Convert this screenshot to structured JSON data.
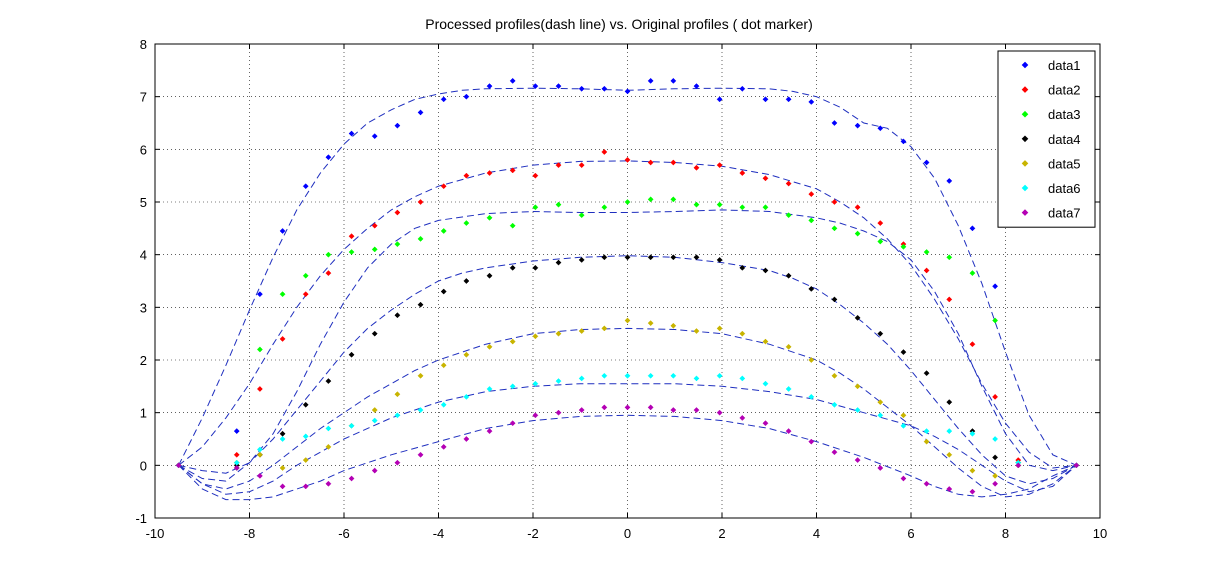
{
  "chart_data": {
    "type": "scatter",
    "title": "Processed profiles(dash line) vs. Original profiles ( dot marker)",
    "xlabel": "",
    "ylabel": "",
    "xlim": [
      -10,
      10
    ],
    "ylim": [
      -1,
      8
    ],
    "x_ticks": [
      "-10",
      "-8",
      "-6",
      "-4",
      "-2",
      "0",
      "2",
      "4",
      "6",
      "8",
      "10"
    ],
    "y_ticks": [
      "-1",
      "0",
      "1",
      "2",
      "3",
      "4",
      "5",
      "6",
      "7",
      "8"
    ],
    "grid": true,
    "legend_position": "top-right",
    "fit_line_style": "dashed",
    "fit_line_color": "#1f2fbf",
    "x": [
      -9.5,
      -8.27,
      -7.78,
      -7.3,
      -6.81,
      -6.33,
      -5.84,
      -5.35,
      -4.87,
      -4.38,
      -3.89,
      -3.41,
      -2.92,
      -2.43,
      -1.95,
      -1.46,
      -0.97,
      -0.49,
      0,
      0.49,
      0.97,
      1.46,
      1.95,
      2.43,
      2.92,
      3.41,
      3.89,
      4.38,
      4.87,
      5.35,
      5.84,
      6.33,
      6.81,
      7.3,
      7.78,
      8.27,
      9.5
    ],
    "series": [
      {
        "name": "data1",
        "color": "#0000ff",
        "values": [
          0,
          0.65,
          3.25,
          4.45,
          5.3,
          5.85,
          6.3,
          6.25,
          6.45,
          6.7,
          6.95,
          7.0,
          7.2,
          7.3,
          7.2,
          7.2,
          7.15,
          7.15,
          7.1,
          7.3,
          7.3,
          7.2,
          6.95,
          7.15,
          6.95,
          6.95,
          6.9,
          6.5,
          6.45,
          6.4,
          6.15,
          5.75,
          5.4,
          4.5,
          3.4,
          0.05,
          0
        ]
      },
      {
        "name": "data2",
        "color": "#ff0000",
        "values": [
          0,
          0.2,
          1.45,
          2.4,
          3.25,
          3.65,
          4.35,
          4.55,
          4.8,
          5.0,
          5.3,
          5.5,
          5.55,
          5.6,
          5.5,
          5.7,
          5.7,
          5.95,
          5.8,
          5.75,
          5.75,
          5.65,
          5.7,
          5.55,
          5.45,
          5.35,
          5.15,
          5.0,
          4.9,
          4.6,
          4.2,
          3.7,
          3.15,
          2.3,
          1.3,
          0.1,
          0
        ]
      },
      {
        "name": "data3",
        "color": "#00ff00",
        "values": [
          0,
          -0.05,
          2.2,
          3.25,
          3.6,
          4.0,
          4.05,
          4.1,
          4.2,
          4.3,
          4.45,
          4.6,
          4.7,
          4.55,
          4.9,
          4.95,
          4.75,
          4.9,
          5.0,
          5.05,
          5.05,
          4.95,
          4.95,
          4.9,
          4.9,
          4.75,
          4.65,
          4.5,
          4.4,
          4.25,
          4.15,
          4.05,
          3.95,
          3.65,
          2.75,
          0.05,
          0
        ]
      },
      {
        "name": "data4",
        "color": "#000000",
        "values": [
          0,
          0.0,
          0.2,
          0.6,
          1.15,
          1.6,
          2.1,
          2.5,
          2.85,
          3.05,
          3.3,
          3.5,
          3.6,
          3.75,
          3.75,
          3.85,
          3.9,
          3.95,
          3.95,
          3.95,
          3.95,
          3.95,
          3.9,
          3.75,
          3.7,
          3.6,
          3.35,
          3.15,
          2.8,
          2.5,
          2.15,
          1.75,
          1.2,
          0.65,
          0.15,
          0.0,
          0
        ]
      },
      {
        "name": "data5",
        "color": "#c8b400",
        "values": [
          0,
          0.05,
          0.2,
          -0.05,
          0.1,
          0.35,
          0.75,
          1.05,
          1.35,
          1.7,
          1.9,
          2.1,
          2.25,
          2.35,
          2.45,
          2.5,
          2.55,
          2.6,
          2.75,
          2.7,
          2.65,
          2.55,
          2.6,
          2.5,
          2.35,
          2.25,
          2.0,
          1.7,
          1.5,
          1.2,
          0.95,
          0.45,
          0.2,
          -0.1,
          -0.2,
          0.0,
          0
        ]
      },
      {
        "name": "data6",
        "color": "#00ffff",
        "values": [
          0,
          0.05,
          0.3,
          0.5,
          0.55,
          0.7,
          0.75,
          0.85,
          0.95,
          1.05,
          1.15,
          1.3,
          1.45,
          1.5,
          1.55,
          1.6,
          1.65,
          1.7,
          1.7,
          1.7,
          1.7,
          1.65,
          1.7,
          1.65,
          1.55,
          1.45,
          1.3,
          1.15,
          1.05,
          0.95,
          0.75,
          0.65,
          0.65,
          0.6,
          0.5,
          0.05,
          0
        ]
      },
      {
        "name": "data7",
        "color": "#b400b4",
        "values": [
          0,
          -0.05,
          -0.2,
          -0.4,
          -0.4,
          -0.35,
          -0.25,
          -0.1,
          0.05,
          0.2,
          0.35,
          0.5,
          0.65,
          0.8,
          0.95,
          1.0,
          1.05,
          1.1,
          1.1,
          1.1,
          1.05,
          1.05,
          1.0,
          0.9,
          0.8,
          0.65,
          0.45,
          0.25,
          0.1,
          -0.05,
          -0.25,
          -0.35,
          -0.45,
          -0.5,
          -0.35,
          0.0,
          0
        ]
      }
    ],
    "fit_lines": [
      {
        "x": [
          -9.5,
          -9.0,
          -8.5,
          -8.0,
          -7.5,
          -7.0,
          -6.5,
          -6.0,
          -5.5,
          -5.0,
          -4.5,
          -4.0,
          -3.5,
          -3.0,
          -2.0,
          -1.0,
          0,
          1.0,
          2.0,
          3.0,
          3.5,
          4.0,
          4.5,
          5.0,
          5.5,
          6.0,
          6.5,
          7.0,
          7.5,
          8.0,
          8.5,
          9.0,
          9.5
        ],
        "y": [
          0,
          0.9,
          1.9,
          2.95,
          3.95,
          4.85,
          5.55,
          6.1,
          6.5,
          6.75,
          6.95,
          7.05,
          7.12,
          7.15,
          7.16,
          7.15,
          7.12,
          7.15,
          7.16,
          7.15,
          7.1,
          7.0,
          6.8,
          6.5,
          6.4,
          6.05,
          5.45,
          4.55,
          3.45,
          2.15,
          0.95,
          0.2,
          0
        ]
      },
      {
        "x": [
          -9.5,
          -9.0,
          -8.5,
          -8.0,
          -7.5,
          -7.0,
          -6.5,
          -6.0,
          -5.5,
          -5.0,
          -4.5,
          -4.0,
          -3.0,
          -2.0,
          -1.0,
          0,
          1.0,
          2.0,
          3.0,
          4.0,
          4.5,
          5.0,
          5.5,
          6.0,
          6.5,
          7.0,
          7.5,
          8.0,
          8.5,
          9.0,
          9.5
        ],
        "y": [
          0,
          0.35,
          0.9,
          1.55,
          2.3,
          3.0,
          3.6,
          4.1,
          4.5,
          4.85,
          5.1,
          5.3,
          5.55,
          5.7,
          5.77,
          5.78,
          5.75,
          5.68,
          5.52,
          5.25,
          5.0,
          4.7,
          4.3,
          3.8,
          3.15,
          2.4,
          1.55,
          0.8,
          0.25,
          -0.05,
          0
        ]
      },
      {
        "x": [
          -9.5,
          -9.0,
          -8.5,
          -8.0,
          -7.5,
          -7.0,
          -6.5,
          -6.0,
          -5.5,
          -5.0,
          -4.5,
          -4.0,
          -3.0,
          -2.0,
          -1.0,
          0,
          1.0,
          2.0,
          3.0,
          4.0,
          4.5,
          5.0,
          5.5,
          6.0,
          6.5,
          7.0,
          7.5,
          8.0,
          8.5,
          9.0,
          9.5
        ],
        "y": [
          0,
          -0.1,
          -0.15,
          0.05,
          0.6,
          1.4,
          2.3,
          3.1,
          3.75,
          4.2,
          4.5,
          4.65,
          4.78,
          4.82,
          4.8,
          4.8,
          4.82,
          4.85,
          4.82,
          4.7,
          4.6,
          4.45,
          4.25,
          3.9,
          3.3,
          2.5,
          1.5,
          0.6,
          0.0,
          -0.1,
          0
        ]
      },
      {
        "x": [
          -9.5,
          -9.0,
          -8.5,
          -8.0,
          -7.5,
          -7.0,
          -6.5,
          -6.0,
          -5.5,
          -5.0,
          -4.5,
          -4.0,
          -3.5,
          -3.0,
          -2.0,
          -1.0,
          0,
          1.0,
          2.0,
          3.0,
          3.5,
          4.0,
          4.5,
          5.0,
          5.5,
          6.0,
          6.5,
          7.0,
          7.5,
          8.0,
          8.5,
          9.0,
          9.5
        ],
        "y": [
          0,
          -0.25,
          -0.3,
          0.05,
          0.5,
          1.05,
          1.6,
          2.15,
          2.6,
          2.95,
          3.25,
          3.5,
          3.65,
          3.75,
          3.88,
          3.95,
          3.98,
          3.95,
          3.85,
          3.7,
          3.55,
          3.35,
          3.05,
          2.7,
          2.3,
          1.8,
          1.25,
          0.7,
          0.2,
          -0.2,
          -0.35,
          -0.25,
          0
        ]
      },
      {
        "x": [
          -9.5,
          -9.0,
          -8.5,
          -8.0,
          -7.5,
          -7.0,
          -6.5,
          -6.0,
          -5.5,
          -5.0,
          -4.5,
          -4.0,
          -3.0,
          -2.0,
          -1.0,
          0,
          1.0,
          2.0,
          3.0,
          4.0,
          4.5,
          5.0,
          5.5,
          6.0,
          6.5,
          7.0,
          7.5,
          8.0,
          8.5,
          9.0,
          9.5
        ],
        "y": [
          0,
          -0.35,
          -0.45,
          -0.3,
          0.0,
          0.35,
          0.7,
          1.0,
          1.3,
          1.55,
          1.8,
          2.0,
          2.3,
          2.5,
          2.58,
          2.6,
          2.58,
          2.5,
          2.3,
          2.0,
          1.75,
          1.45,
          1.1,
          0.75,
          0.35,
          -0.05,
          -0.4,
          -0.6,
          -0.55,
          -0.35,
          0
        ]
      },
      {
        "x": [
          -9.5,
          -9.0,
          -8.5,
          -8.0,
          -7.5,
          -7.0,
          -6.5,
          -6.0,
          -5.0,
          -4.0,
          -3.0,
          -2.0,
          -1.0,
          0,
          1.0,
          2.0,
          3.0,
          4.0,
          5.0,
          6.0,
          6.5,
          7.0,
          7.5,
          8.0,
          8.5,
          9.0,
          9.5
        ],
        "y": [
          0,
          -0.35,
          -0.55,
          -0.5,
          -0.3,
          0.0,
          0.25,
          0.5,
          0.9,
          1.2,
          1.4,
          1.5,
          1.55,
          1.55,
          1.55,
          1.5,
          1.4,
          1.25,
          1.0,
          0.75,
          0.55,
          0.3,
          0.0,
          -0.3,
          -0.5,
          -0.4,
          0
        ]
      },
      {
        "x": [
          -9.5,
          -9.0,
          -8.5,
          -8.0,
          -7.5,
          -7.0,
          -6.5,
          -6.0,
          -5.0,
          -4.0,
          -3.0,
          -2.0,
          -1.0,
          0,
          1.0,
          2.0,
          3.0,
          4.0,
          5.0,
          6.0,
          6.5,
          7.0,
          7.5,
          8.0,
          8.5,
          9.0,
          9.5
        ],
        "y": [
          0,
          -0.45,
          -0.65,
          -0.65,
          -0.6,
          -0.45,
          -0.3,
          -0.1,
          0.2,
          0.45,
          0.7,
          0.85,
          0.93,
          0.95,
          0.93,
          0.85,
          0.7,
          0.45,
          0.15,
          -0.2,
          -0.4,
          -0.55,
          -0.6,
          -0.55,
          -0.45,
          -0.2,
          0
        ]
      }
    ]
  }
}
